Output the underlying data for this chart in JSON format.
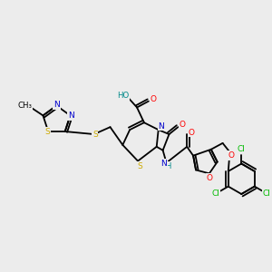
{
  "background_color": "#ececec",
  "figsize": [
    3.0,
    3.0
  ],
  "dpi": 100,
  "colors": {
    "C": "#000000",
    "N": "#0000cc",
    "O": "#ff0000",
    "S": "#ccaa00",
    "Cl": "#00bb00",
    "H": "#008888",
    "bond": "#000000"
  },
  "lw": 1.3
}
